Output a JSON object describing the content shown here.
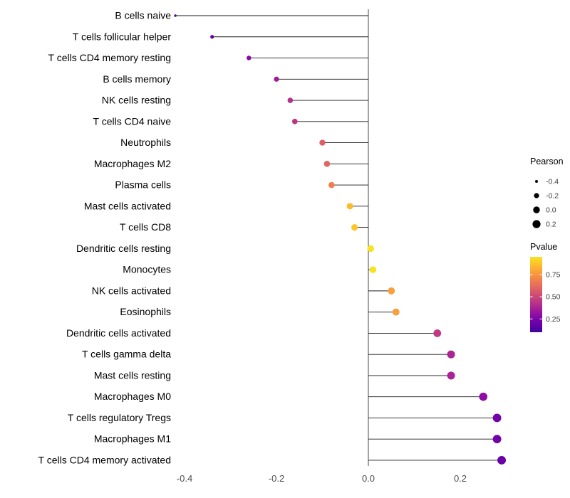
{
  "chart_data": {
    "type": "scatter",
    "style": "lollipop",
    "title": "",
    "xlabel": "",
    "ylabel": "",
    "xlim": [
      -0.47,
      0.33
    ],
    "x_ticks": [
      -0.4,
      -0.2,
      0.0,
      0.2
    ],
    "x_tick_labels": [
      "-0.4",
      "-0.2",
      "0.0",
      "0.2"
    ],
    "grid": false,
    "legend_position": "right",
    "points": [
      {
        "label": "B cells naive",
        "pearson": -0.42,
        "pvalue": 0.1
      },
      {
        "label": "T cells follicular helper",
        "pearson": -0.34,
        "pvalue": 0.18
      },
      {
        "label": "T cells CD4 memory resting",
        "pearson": -0.26,
        "pvalue": 0.28
      },
      {
        "label": "B cells memory",
        "pearson": -0.2,
        "pvalue": 0.35
      },
      {
        "label": "NK cells resting",
        "pearson": -0.17,
        "pvalue": 0.42
      },
      {
        "label": "T cells CD4 naive",
        "pearson": -0.16,
        "pvalue": 0.44
      },
      {
        "label": "Neutrophils",
        "pearson": -0.1,
        "pvalue": 0.58
      },
      {
        "label": "Macrophages M2",
        "pearson": -0.09,
        "pvalue": 0.6
      },
      {
        "label": "Plasma cells",
        "pearson": -0.08,
        "pvalue": 0.68
      },
      {
        "label": "Mast cells activated",
        "pearson": -0.04,
        "pvalue": 0.85
      },
      {
        "label": "T cells CD8",
        "pearson": -0.03,
        "pvalue": 0.88
      },
      {
        "label": "Dendritic cells resting",
        "pearson": 0.005,
        "pvalue": 0.95
      },
      {
        "label": "Monocytes",
        "pearson": 0.01,
        "pvalue": 0.95
      },
      {
        "label": "NK cells activated",
        "pearson": 0.05,
        "pvalue": 0.78
      },
      {
        "label": "Eosinophils",
        "pearson": 0.06,
        "pvalue": 0.78
      },
      {
        "label": "Dendritic cells activated",
        "pearson": 0.15,
        "pvalue": 0.45
      },
      {
        "label": "T cells gamma delta",
        "pearson": 0.18,
        "pvalue": 0.38
      },
      {
        "label": "Mast cells resting",
        "pearson": 0.18,
        "pvalue": 0.38
      },
      {
        "label": "Macrophages M0",
        "pearson": 0.25,
        "pvalue": 0.3
      },
      {
        "label": "T cells regulatory Tregs",
        "pearson": 0.28,
        "pvalue": 0.22
      },
      {
        "label": "Macrophages M1",
        "pearson": 0.28,
        "pvalue": 0.22
      },
      {
        "label": "T cells CD4 memory activated",
        "pearson": 0.29,
        "pvalue": 0.2
      }
    ],
    "legend": {
      "size": {
        "title": "Pearson",
        "values": [
          -0.4,
          -0.2,
          0.0,
          0.2
        ],
        "labels": [
          "-0.4",
          "-0.2",
          "0.0",
          "0.2"
        ]
      },
      "color": {
        "title": "Pvalue",
        "colormap": "plasma",
        "range": [
          0.1,
          0.95
        ],
        "ticks": [
          0.75,
          0.5,
          0.25
        ],
        "tick_labels": [
          "0.75",
          "0.50",
          "0.25"
        ]
      }
    }
  },
  "colors": {
    "background": "#ffffff",
    "stem": "#1a1a1a",
    "zero_line": "#1a1a1a",
    "axis_tick_text": "#4d4d4d",
    "category_text": "#000000",
    "legend_title_text": "#000000",
    "legend_label_text": "#3d3d3d",
    "legend_dot": "#000000"
  }
}
